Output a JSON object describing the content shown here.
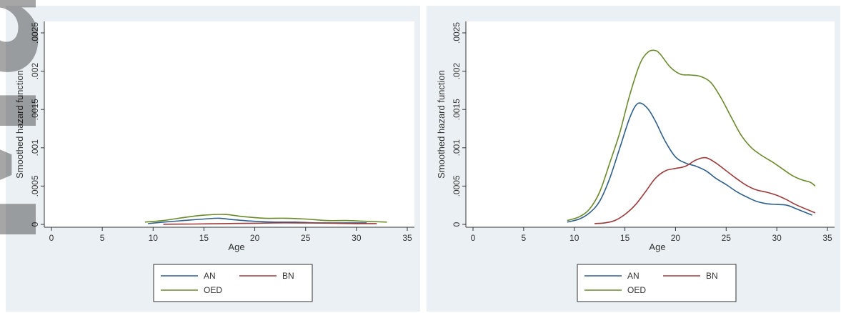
{
  "colors": {
    "AN": "#2f5f8a",
    "BN": "#9b3a3a",
    "OED": "#6a8a2c"
  },
  "watermark": {
    "text": "Manusc"
  },
  "chart_data": [
    {
      "type": "line",
      "xlabel": "Age",
      "ylabel": "Smoothed hazard function",
      "xlim": [
        0,
        35
      ],
      "ylim": [
        0,
        0.0025
      ],
      "xticks": [
        "0",
        "5",
        "10",
        "15",
        "20",
        "25",
        "30",
        "35"
      ],
      "yticks": [
        "0",
        ".0005",
        ".001",
        ".0015",
        ".002",
        ".0025"
      ],
      "legend": {
        "position": "bottom",
        "entries": [
          "AN",
          "BN",
          "OED"
        ]
      },
      "series": [
        {
          "name": "AN",
          "x": [
            9.5,
            11,
            13,
            15,
            16.5,
            18,
            20,
            22,
            24,
            26,
            28,
            30,
            31
          ],
          "y": [
            1e-05,
            3e-05,
            5e-05,
            7e-05,
            8e-05,
            6e-05,
            4e-05,
            3e-05,
            3e-05,
            2e-05,
            2e-05,
            2e-05,
            2e-05
          ]
        },
        {
          "name": "BN",
          "x": [
            11,
            14,
            17,
            20,
            22,
            24,
            26,
            28,
            30,
            32
          ],
          "y": [
            2e-06,
            5e-06,
            1e-05,
            1.5e-05,
            2e-05,
            2e-05,
            1.8e-05,
            1.5e-05,
            1e-05,
            1e-05
          ]
        },
        {
          "name": "OED",
          "x": [
            9.2,
            11,
            13,
            15,
            17,
            19,
            21,
            23,
            25,
            27,
            29,
            31,
            33
          ],
          "y": [
            3e-05,
            5e-05,
            9e-05,
            0.00012,
            0.00013,
            0.0001,
            8e-05,
            8e-05,
            7e-05,
            5e-05,
            5e-05,
            4e-05,
            3e-05
          ]
        }
      ]
    },
    {
      "type": "line",
      "xlabel": "Age",
      "ylabel": "Smoothed hazard function",
      "xlim": [
        0,
        35
      ],
      "ylim": [
        0,
        0.0025
      ],
      "xticks": [
        "0",
        "5",
        "10",
        "15",
        "20",
        "25",
        "30",
        "35"
      ],
      "yticks": [
        "0",
        ".0005",
        ".001",
        ".0015",
        ".002",
        ".0025"
      ],
      "legend": {
        "position": "bottom",
        "entries": [
          "AN",
          "BN",
          "OED"
        ]
      },
      "series": [
        {
          "name": "AN",
          "x": [
            9.3,
            10.5,
            11.5,
            12.5,
            13.5,
            14.5,
            15.5,
            16.3,
            17.2,
            18,
            19,
            20,
            21,
            22,
            23,
            24,
            25,
            26,
            27,
            28,
            29,
            30,
            31,
            32,
            33.5
          ],
          "y": [
            3e-05,
            7e-05,
            0.00015,
            0.0003,
            0.0006,
            0.001,
            0.0014,
            0.00158,
            0.00152,
            0.00135,
            0.00108,
            0.00088,
            0.0008,
            0.00076,
            0.0007,
            0.0006,
            0.00052,
            0.00043,
            0.00036,
            0.0003,
            0.00027,
            0.00026,
            0.00025,
            0.0002,
            0.00012
          ]
        },
        {
          "name": "BN",
          "x": [
            12,
            13,
            14,
            15,
            16,
            17,
            18,
            19,
            20,
            21,
            22,
            23,
            24,
            25,
            26,
            27,
            28,
            29,
            30,
            31,
            32,
            33.8
          ],
          "y": [
            1e-05,
            2e-05,
            5e-05,
            0.00013,
            0.00025,
            0.00042,
            0.0006,
            0.0007,
            0.00073,
            0.00076,
            0.00084,
            0.00087,
            0.0008,
            0.0007,
            0.0006,
            0.00051,
            0.00045,
            0.00042,
            0.00038,
            0.00032,
            0.00025,
            0.00015
          ]
        },
        {
          "name": "OED",
          "x": [
            9.3,
            10.5,
            11.5,
            12.5,
            13.5,
            14.5,
            15.5,
            16.5,
            17.3,
            18,
            18.5,
            19.5,
            20.5,
            21.5,
            22.5,
            23.5,
            24.5,
            25.5,
            26.5,
            27.5,
            28.5,
            29.5,
            30.5,
            31.5,
            32.5,
            33.3,
            33.8
          ],
          "y": [
            5e-05,
            0.0001,
            0.0002,
            0.00042,
            0.0008,
            0.0012,
            0.0017,
            0.0021,
            0.00225,
            0.00227,
            0.00222,
            0.00205,
            0.00196,
            0.00195,
            0.00193,
            0.00185,
            0.00165,
            0.0014,
            0.00116,
            0.001,
            0.0009,
            0.00082,
            0.00073,
            0.00064,
            0.00058,
            0.00055,
            0.0005
          ]
        }
      ]
    }
  ]
}
